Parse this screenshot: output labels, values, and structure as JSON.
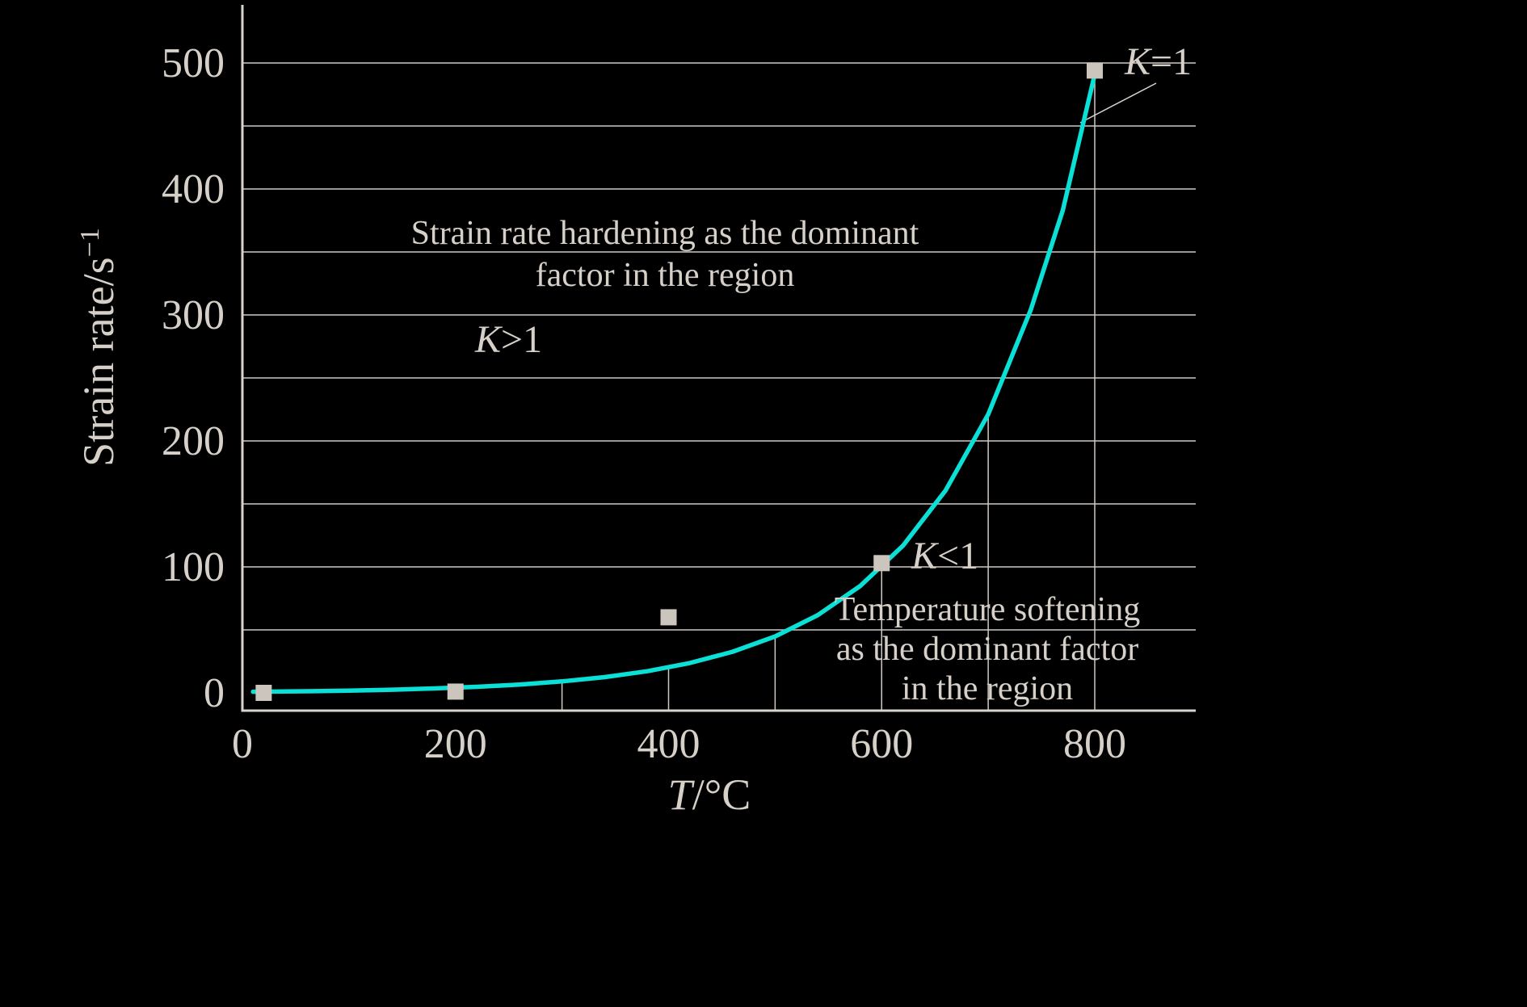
{
  "chart_data": {
    "type": "line",
    "title": "",
    "xlabel": {
      "main": "T",
      "suffix": "/°C"
    },
    "ylabel": {
      "main": "Strain rate/s",
      "sup": "−1"
    },
    "xlim": [
      0,
      895
    ],
    "ylim": [
      0,
      550
    ],
    "grid": true,
    "legend": null,
    "x_ticks": [
      0,
      200,
      400,
      600,
      800
    ],
    "y_ticks": [
      0,
      100,
      200,
      300,
      400,
      500
    ],
    "y_gridlines": [
      50,
      100,
      150,
      200,
      250,
      300,
      350,
      400,
      450,
      500
    ],
    "x_gridlines_to_curve": [
      300,
      400,
      500,
      600,
      700,
      800
    ],
    "curve": {
      "name": "K=1 boundary curve",
      "points": [
        [
          10,
          0.9
        ],
        [
          20,
          1.0
        ],
        [
          60,
          1.3
        ],
        [
          100,
          1.8
        ],
        [
          140,
          2.5
        ],
        [
          180,
          3.5
        ],
        [
          220,
          4.8
        ],
        [
          260,
          6.6
        ],
        [
          300,
          9.1
        ],
        [
          340,
          12.5
        ],
        [
          380,
          17.2
        ],
        [
          420,
          23.7
        ],
        [
          460,
          32.6
        ],
        [
          500,
          44.8
        ],
        [
          540,
          61.7
        ],
        [
          580,
          84.9
        ],
        [
          620,
          116.8
        ],
        [
          660,
          160.7
        ],
        [
          700,
          221.1
        ],
        [
          740,
          304.2
        ],
        [
          770,
          383.0
        ],
        [
          800,
          491.0
        ]
      ]
    },
    "scatter": {
      "name": "measured data points",
      "points": [
        [
          20,
          0
        ],
        [
          200,
          1
        ],
        [
          400,
          60
        ],
        [
          600,
          103
        ],
        [
          800,
          494
        ]
      ]
    },
    "annotations": {
      "region_upper_line1": "Strain rate hardening as the dominant",
      "region_upper_line2": "factor in the region",
      "k_gt": {
        "k": "K",
        "rest": ">1"
      },
      "k_eq": {
        "k": "K",
        "rest": "=1"
      },
      "k_lt": {
        "k": "K",
        "rest": "<1"
      },
      "region_lower_line1": "Temperature softening",
      "region_lower_line2": "as the dominant factor",
      "region_lower_line3": "in the region"
    },
    "colors": {
      "background": "#000000",
      "curve": "#0ae0d6",
      "axis": "#d9d3cc",
      "grid": "#cfc9c2",
      "text": "#d6d0c9",
      "marker": "#cbc5be"
    }
  }
}
